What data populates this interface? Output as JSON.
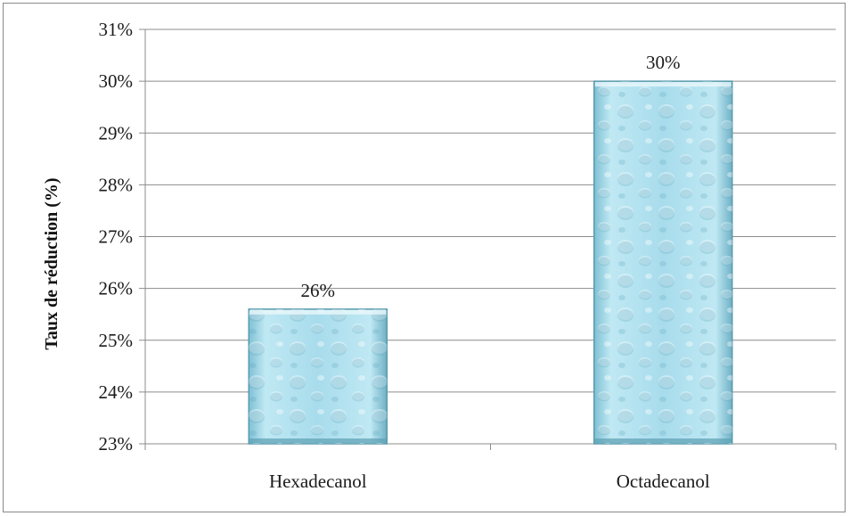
{
  "chart_data": {
    "type": "bar",
    "title": "",
    "xlabel": "",
    "ylabel": "Taux de réduction (%)",
    "categories": [
      "Hexadecanol",
      "Octadecanol"
    ],
    "values": [
      25.6,
      30.0
    ],
    "data_labels": [
      "26%",
      "30%"
    ],
    "ylim": [
      23,
      31
    ],
    "yticks": [
      23,
      24,
      25,
      26,
      27,
      28,
      29,
      30,
      31
    ],
    "ytick_labels": [
      "23%",
      "24%",
      "25%",
      "26%",
      "27%",
      "28%",
      "29%",
      "30%",
      "31%"
    ],
    "grid": true,
    "legend": "none",
    "bar_color": "#9fd6e6",
    "bar_edge_color": "#5a9aad"
  }
}
